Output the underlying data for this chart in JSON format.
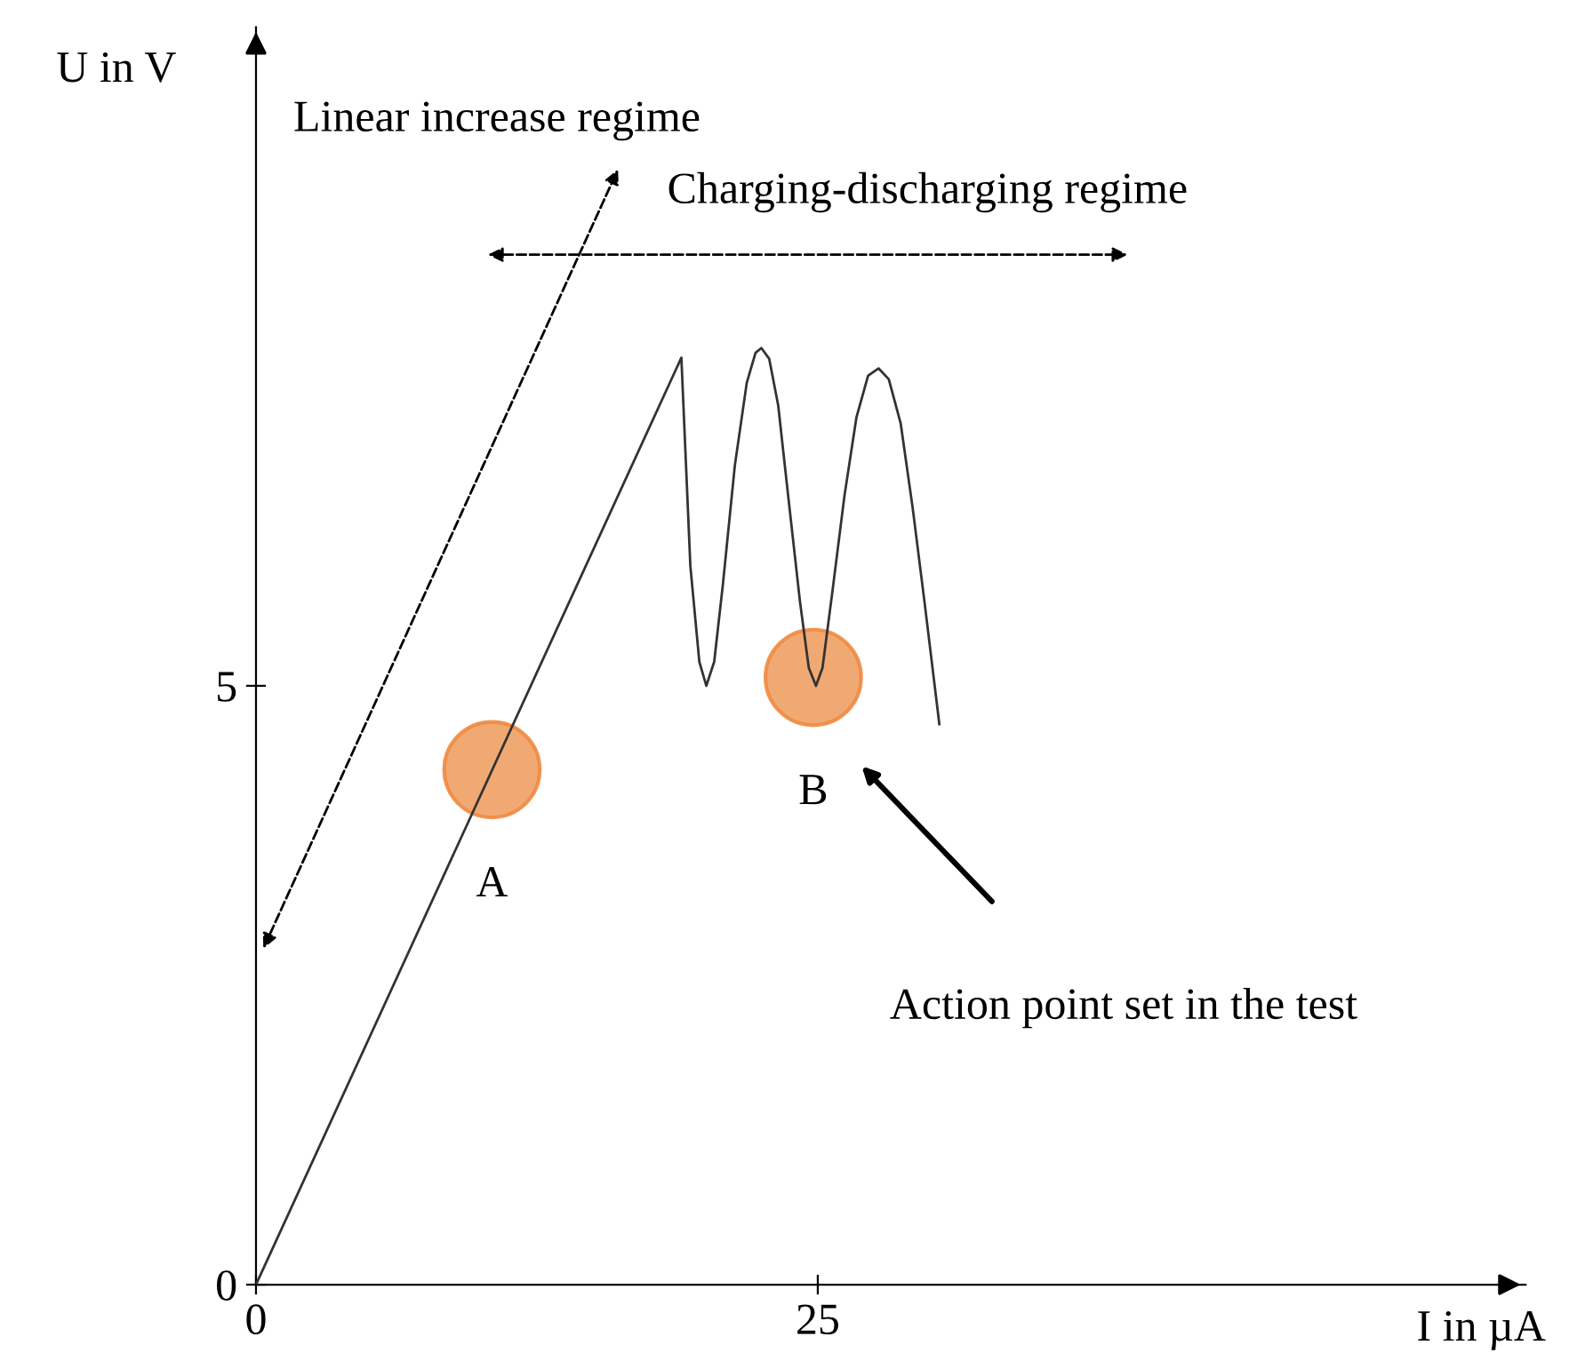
{
  "chart_data": {
    "type": "line",
    "xlabel": "I in µA",
    "ylabel": "U in V",
    "xlim": [
      0,
      56.5
    ],
    "ylim": [
      0,
      10.5
    ],
    "xticks": [
      0,
      25
    ],
    "yticks": [
      0,
      5
    ],
    "grid": false,
    "legend": false,
    "series": [
      {
        "color": "#333333",
        "x": [
          0,
          18.93,
          19.33,
          19.73,
          20.04,
          20.39,
          20.78,
          21.31,
          21.84,
          22.23,
          22.49,
          22.84,
          23.24,
          23.68,
          24.21,
          24.6,
          24.92,
          25.21,
          25.66,
          26.19,
          26.72,
          27.24,
          27.71,
          28.16,
          28.69,
          29.22,
          29.75,
          30.41
        ],
        "values": [
          0,
          7.74,
          6.0,
          5.2,
          5.0,
          5.2,
          5.85,
          6.84,
          7.53,
          7.78,
          7.82,
          7.73,
          7.34,
          6.59,
          5.7,
          5.15,
          5.0,
          5.15,
          5.8,
          6.59,
          7.24,
          7.59,
          7.65,
          7.56,
          7.19,
          6.49,
          5.7,
          4.68
        ]
      },
      {
        "type": "scatter",
        "color": "#f0a064",
        "x": [
          10.5,
          24.8
        ],
        "values": [
          4.3,
          5.07
        ]
      }
    ],
    "annotations": [
      {
        "text": "A",
        "x": 10.5,
        "y": 4.3
      },
      {
        "text": "B",
        "x": 24.8,
        "y": 5.07
      },
      "Linear increase regime",
      "Charging-discharging regime",
      "Action point set in the test"
    ]
  }
}
